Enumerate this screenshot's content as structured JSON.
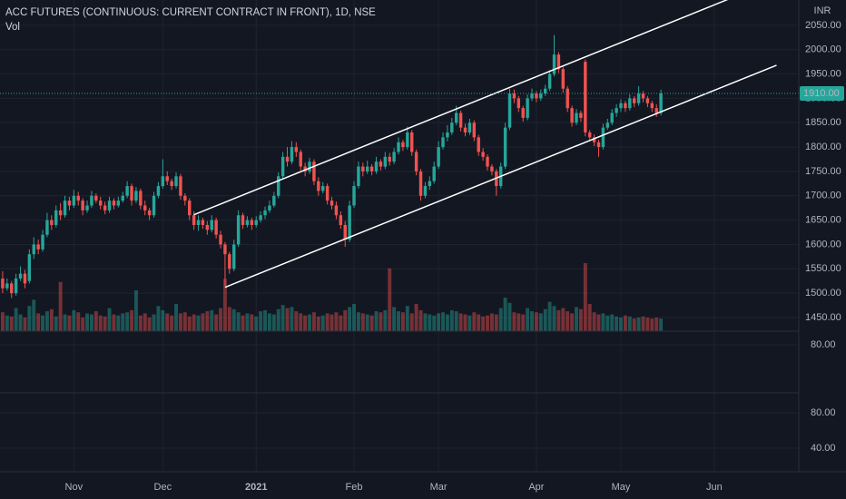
{
  "chart_data": {
    "type": "candlestick",
    "title": "ACC FUTURES (CONTINUOUS: CURRENT CONTRACT IN FRONT), 1D, NSE",
    "volume_label": "Vol",
    "currency": "INR",
    "up_color": "#26a69a",
    "down_color": "#ef5350",
    "grid": true,
    "ylim": [
      1422,
      2102
    ],
    "yticks": [
      {
        "value": 1450,
        "label": "1450.00"
      },
      {
        "value": 1500,
        "label": "1500.00"
      },
      {
        "value": 1550,
        "label": "1550.00"
      },
      {
        "value": 1600,
        "label": "1600.00"
      },
      {
        "value": 1650,
        "label": "1650.00"
      },
      {
        "value": 1700,
        "label": "1700.00"
      },
      {
        "value": 1750,
        "label": "1750.00"
      },
      {
        "value": 1800,
        "label": "1800.00"
      },
      {
        "value": 1850,
        "label": "1850.00"
      },
      {
        "value": 1900,
        "label": "1900.00"
      },
      {
        "value": 1950,
        "label": "1950.00"
      },
      {
        "value": 2000,
        "label": "2000.00"
      },
      {
        "value": 2050,
        "label": "2050.00"
      }
    ],
    "xlim": [
      -0.6,
      179
    ],
    "xticks": [
      {
        "value": 16,
        "label": "Nov"
      },
      {
        "value": 36,
        "label": "Dec"
      },
      {
        "value": 57,
        "label": "2021",
        "bold": true
      },
      {
        "value": 79,
        "label": "Feb"
      },
      {
        "value": 98,
        "label": "Mar"
      },
      {
        "value": 120,
        "label": "Apr"
      },
      {
        "value": 139,
        "label": "May"
      },
      {
        "value": 160,
        "label": "Jun"
      }
    ],
    "last_price": {
      "value": 1910,
      "label": "1910.00"
    },
    "candles": [
      [
        1530,
        1545,
        1500,
        1510
      ],
      [
        1510,
        1530,
        1505,
        1520
      ],
      [
        1520,
        1525,
        1490,
        1500
      ],
      [
        1500,
        1540,
        1495,
        1530
      ],
      [
        1530,
        1555,
        1525,
        1540
      ],
      [
        1540,
        1548,
        1510,
        1520
      ],
      [
        1525,
        1590,
        1520,
        1580
      ],
      [
        1580,
        1615,
        1570,
        1600
      ],
      [
        1600,
        1610,
        1580,
        1590
      ],
      [
        1590,
        1630,
        1585,
        1620
      ],
      [
        1620,
        1665,
        1615,
        1650
      ],
      [
        1650,
        1660,
        1630,
        1640
      ],
      [
        1640,
        1680,
        1635,
        1670
      ],
      [
        1670,
        1685,
        1650,
        1660
      ],
      [
        1660,
        1700,
        1655,
        1690
      ],
      [
        1690,
        1698,
        1670,
        1680
      ],
      [
        1680,
        1712,
        1675,
        1700
      ],
      [
        1700,
        1708,
        1680,
        1690
      ],
      [
        1690,
        1695,
        1660,
        1670
      ],
      [
        1670,
        1690,
        1665,
        1680
      ],
      [
        1680,
        1710,
        1675,
        1700
      ],
      [
        1700,
        1705,
        1685,
        1690
      ],
      [
        1690,
        1698,
        1672,
        1680
      ],
      [
        1680,
        1688,
        1662,
        1670
      ],
      [
        1670,
        1698,
        1665,
        1690
      ],
      [
        1690,
        1695,
        1672,
        1680
      ],
      [
        1680,
        1698,
        1676,
        1690
      ],
      [
        1690,
        1708,
        1686,
        1700
      ],
      [
        1700,
        1730,
        1695,
        1720
      ],
      [
        1720,
        1725,
        1680,
        1690
      ],
      [
        1690,
        1718,
        1685,
        1710
      ],
      [
        1710,
        1715,
        1672,
        1680
      ],
      [
        1680,
        1690,
        1660,
        1670
      ],
      [
        1670,
        1675,
        1650,
        1660
      ],
      [
        1660,
        1708,
        1655,
        1700
      ],
      [
        1700,
        1728,
        1695,
        1720
      ],
      [
        1720,
        1775,
        1715,
        1740
      ],
      [
        1740,
        1750,
        1722,
        1730
      ],
      [
        1730,
        1735,
        1712,
        1720
      ],
      [
        1720,
        1748,
        1715,
        1740
      ],
      [
        1740,
        1745,
        1692,
        1700
      ],
      [
        1700,
        1705,
        1680,
        1690
      ],
      [
        1690,
        1695,
        1650,
        1660
      ],
      [
        1660,
        1668,
        1630,
        1640
      ],
      [
        1640,
        1660,
        1628,
        1650
      ],
      [
        1650,
        1655,
        1632,
        1640
      ],
      [
        1640,
        1648,
        1620,
        1630
      ],
      [
        1630,
        1660,
        1625,
        1650
      ],
      [
        1650,
        1655,
        1612,
        1620
      ],
      [
        1620,
        1628,
        1592,
        1600
      ],
      [
        1600,
        1605,
        1515,
        1580
      ],
      [
        1580,
        1585,
        1540,
        1550
      ],
      [
        1550,
        1610,
        1545,
        1600
      ],
      [
        1600,
        1670,
        1595,
        1660
      ],
      [
        1660,
        1665,
        1632,
        1640
      ],
      [
        1640,
        1658,
        1635,
        1650
      ],
      [
        1650,
        1655,
        1630,
        1640
      ],
      [
        1640,
        1658,
        1635,
        1650
      ],
      [
        1650,
        1668,
        1645,
        1660
      ],
      [
        1660,
        1678,
        1652,
        1670
      ],
      [
        1670,
        1690,
        1665,
        1680
      ],
      [
        1680,
        1708,
        1676,
        1700
      ],
      [
        1700,
        1748,
        1695,
        1740
      ],
      [
        1740,
        1790,
        1735,
        1780
      ],
      [
        1780,
        1800,
        1760,
        1770
      ],
      [
        1770,
        1812,
        1765,
        1800
      ],
      [
        1800,
        1810,
        1780,
        1790
      ],
      [
        1790,
        1795,
        1752,
        1760
      ],
      [
        1760,
        1768,
        1740,
        1750
      ],
      [
        1750,
        1778,
        1745,
        1770
      ],
      [
        1770,
        1775,
        1722,
        1730
      ],
      [
        1730,
        1738,
        1700,
        1710
      ],
      [
        1710,
        1728,
        1705,
        1720
      ],
      [
        1720,
        1725,
        1682,
        1690
      ],
      [
        1690,
        1698,
        1672,
        1680
      ],
      [
        1680,
        1688,
        1652,
        1660
      ],
      [
        1660,
        1668,
        1632,
        1640
      ],
      [
        1640,
        1648,
        1595,
        1610
      ],
      [
        1610,
        1690,
        1605,
        1680
      ],
      [
        1680,
        1730,
        1675,
        1720
      ],
      [
        1720,
        1770,
        1715,
        1760
      ],
      [
        1760,
        1768,
        1740,
        1750
      ],
      [
        1750,
        1772,
        1745,
        1760
      ],
      [
        1760,
        1765,
        1742,
        1750
      ],
      [
        1750,
        1780,
        1745,
        1770
      ],
      [
        1770,
        1775,
        1752,
        1760
      ],
      [
        1760,
        1790,
        1755,
        1780
      ],
      [
        1780,
        1788,
        1762,
        1770
      ],
      [
        1770,
        1798,
        1765,
        1790
      ],
      [
        1790,
        1820,
        1785,
        1810
      ],
      [
        1810,
        1815,
        1792,
        1800
      ],
      [
        1800,
        1842,
        1795,
        1830
      ],
      [
        1830,
        1835,
        1782,
        1790
      ],
      [
        1790,
        1795,
        1742,
        1750
      ],
      [
        1750,
        1755,
        1690,
        1700
      ],
      [
        1700,
        1728,
        1695,
        1720
      ],
      [
        1720,
        1740,
        1712,
        1730
      ],
      [
        1730,
        1770,
        1725,
        1760
      ],
      [
        1760,
        1812,
        1755,
        1800
      ],
      [
        1800,
        1830,
        1795,
        1820
      ],
      [
        1820,
        1845,
        1812,
        1830
      ],
      [
        1830,
        1860,
        1825,
        1850
      ],
      [
        1850,
        1885,
        1845,
        1870
      ],
      [
        1870,
        1875,
        1832,
        1840
      ],
      [
        1840,
        1848,
        1822,
        1830
      ],
      [
        1830,
        1858,
        1825,
        1850
      ],
      [
        1850,
        1855,
        1812,
        1820
      ],
      [
        1820,
        1825,
        1782,
        1790
      ],
      [
        1790,
        1798,
        1772,
        1780
      ],
      [
        1780,
        1785,
        1752,
        1760
      ],
      [
        1760,
        1765,
        1742,
        1750
      ],
      [
        1750,
        1755,
        1700,
        1720
      ],
      [
        1720,
        1768,
        1715,
        1760
      ],
      [
        1760,
        1850,
        1755,
        1840
      ],
      [
        1840,
        1920,
        1835,
        1910
      ],
      [
        1910,
        1918,
        1890,
        1900
      ],
      [
        1900,
        1905,
        1872,
        1880
      ],
      [
        1880,
        1885,
        1852,
        1860
      ],
      [
        1860,
        1908,
        1855,
        1900
      ],
      [
        1900,
        1920,
        1895,
        1910
      ],
      [
        1910,
        1915,
        1892,
        1900
      ],
      [
        1900,
        1918,
        1895,
        1910
      ],
      [
        1910,
        1928,
        1905,
        1920
      ],
      [
        1920,
        1958,
        1915,
        1950
      ],
      [
        1950,
        2030,
        1945,
        1990
      ],
      [
        1990,
        1995,
        1952,
        1960
      ],
      [
        1960,
        1965,
        1912,
        1920
      ],
      [
        1920,
        1925,
        1872,
        1880
      ],
      [
        1880,
        1885,
        1842,
        1850
      ],
      [
        1850,
        1878,
        1845,
        1870
      ],
      [
        1870,
        1875,
        1852,
        1860
      ],
      [
        1975,
        1980,
        1822,
        1830
      ],
      [
        1830,
        1835,
        1812,
        1820
      ],
      [
        1820,
        1826,
        1802,
        1810
      ],
      [
        1810,
        1815,
        1780,
        1800
      ],
      [
        1800,
        1848,
        1795,
        1840
      ],
      [
        1840,
        1858,
        1835,
        1850
      ],
      [
        1850,
        1878,
        1845,
        1870
      ],
      [
        1870,
        1888,
        1862,
        1880
      ],
      [
        1880,
        1898,
        1872,
        1890
      ],
      [
        1890,
        1895,
        1872,
        1880
      ],
      [
        1880,
        1908,
        1875,
        1900
      ],
      [
        1900,
        1905,
        1882,
        1890
      ],
      [
        1890,
        1925,
        1885,
        1910
      ],
      [
        1910,
        1915,
        1892,
        1900
      ],
      [
        1900,
        1905,
        1882,
        1890
      ],
      [
        1890,
        1895,
        1872,
        1880
      ],
      [
        1880,
        1888,
        1862,
        1870
      ],
      [
        1870,
        1918,
        1865,
        1910
      ]
    ],
    "volume": [
      1800,
      1500,
      1400,
      2200,
      1600,
      1300,
      2400,
      3000,
      1700,
      1500,
      1900,
      2100,
      1400,
      4700,
      1600,
      1500,
      2000,
      1800,
      1300,
      1700,
      1600,
      1900,
      1500,
      1400,
      2200,
      1600,
      1500,
      1700,
      1800,
      2000,
      3900,
      1500,
      1700,
      1300,
      1600,
      2400,
      2000,
      1700,
      1500,
      2600,
      1700,
      1800,
      1400,
      1600,
      1500,
      1700,
      1900,
      2000,
      1600,
      2200,
      5000,
      2300,
      2100,
      1800,
      1500,
      1700,
      1600,
      1400,
      1900,
      2000,
      1700,
      1600,
      2100,
      2500,
      2200,
      2300,
      1900,
      1700,
      1500,
      1600,
      1800,
      1400,
      1500,
      1700,
      1600,
      1800,
      1500,
      2000,
      2300,
      2600,
      1800,
      1700,
      1600,
      1500,
      1900,
      1800,
      2000,
      6000,
      2300,
      1900,
      1800,
      2400,
      1700,
      2600,
      2000,
      1700,
      1600,
      1500,
      1700,
      1800,
      1600,
      2000,
      1900,
      1700,
      1600,
      1500,
      1800,
      1600,
      1400,
      1500,
      1700,
      1600,
      2200,
      3200,
      2700,
      1800,
      1700,
      1600,
      2200,
      1900,
      1800,
      1700,
      2100,
      2800,
      2400,
      2000,
      2200,
      1900,
      1700,
      2300,
      2100,
      6500,
      2600,
      1800,
      1600,
      1700,
      1500,
      1600,
      1400,
      1300,
      1500,
      1400,
      1200,
      1300,
      1400,
      1300,
      1200,
      1300,
      1200
    ],
    "trend_lines": [
      {
        "x": [
          43,
          163
        ],
        "y": [
          1661,
          2103
        ]
      },
      {
        "x": [
          50,
          174
        ],
        "y": [
          1512,
          1968
        ]
      }
    ],
    "panes": [
      {
        "ylim": [
          25.6,
          95.4
        ],
        "yticks": [
          {
            "value": 80,
            "label": "80.00"
          }
        ]
      },
      {
        "ylim": [
          13.3,
          102.6
        ],
        "yticks": [
          {
            "value": 80,
            "label": "80.00"
          },
          {
            "value": 40,
            "label": "40.00"
          }
        ]
      }
    ]
  }
}
